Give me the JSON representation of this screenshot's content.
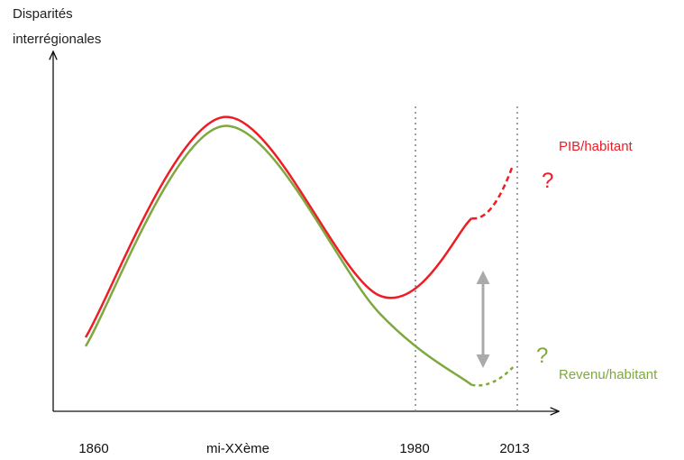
{
  "chart_data": {
    "type": "line",
    "xlabel": "",
    "ylabel": [
      "Disparités",
      "interrégionales"
    ],
    "x_ticks": [
      "1860",
      "mi-XXème",
      "1980",
      "2013"
    ],
    "vertical_markers": [
      "1980",
      "2013"
    ],
    "series": [
      {
        "name": "PIB/habitant",
        "color": "#ee1c25",
        "annotation": "?",
        "points": [
          [
            0,
            0.2
          ],
          [
            0.3,
            0.94
          ],
          [
            0.64,
            0.34
          ],
          [
            0.84,
            0.6
          ],
          [
            0.93,
            0.78
          ]
        ],
        "projection_from": 0.84
      },
      {
        "name": "Revenu/habitant",
        "color": "#7fa83e",
        "annotation": "?",
        "points": [
          [
            0,
            0.17
          ],
          [
            0.3,
            0.91
          ],
          [
            0.64,
            0.28
          ],
          [
            0.84,
            0.04
          ],
          [
            0.93,
            0.1
          ]
        ],
        "projection_from": 0.84
      }
    ],
    "gap_arrow": {
      "x": 0.75,
      "color": "#aaaaaa"
    },
    "grid": false
  }
}
